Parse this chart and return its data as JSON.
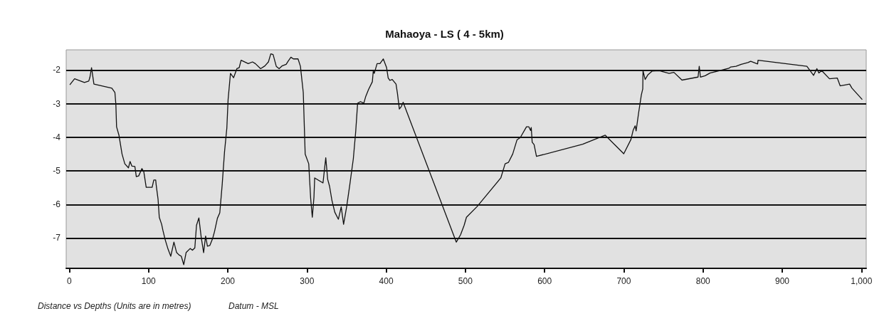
{
  "chart_data": {
    "type": "line",
    "title": "Mahaoya - LS ( 4 - 5km)",
    "annotations": [
      "Distance vs Depths (Units are in metres)",
      "Datum - MSL"
    ],
    "x": [
      0.6,
      6.6,
      19,
      24.5,
      26,
      28,
      31,
      53.6,
      57.5,
      58.7,
      59.6,
      62.6,
      66.5,
      70,
      74.6,
      76.6,
      79,
      82.7,
      84.5,
      87.5,
      91.6,
      94,
      97,
      104.5,
      106.6,
      109,
      109.6,
      112,
      113.5,
      116.5,
      118,
      121,
      124.6,
      128,
      132,
      135.4,
      138.4,
      141.3,
      144.4,
      147.4,
      152.5,
      155.4,
      158.4,
      160.5,
      163.5,
      166.5,
      169.5,
      172,
      174.3,
      177.3,
      180.9,
      183.3,
      186.9,
      189.9,
      192.9,
      195.9,
      198.8,
      200.4,
      203.4,
      207.3,
      211.5,
      214.4,
      216.8,
      225.8,
      231.2,
      234.8,
      241.4,
      246.8,
      251.3,
      254.3,
      257.2,
      261.2,
      264.8,
      268.4,
      273.7,
      276.1,
      279.7,
      282.8,
      288.7,
      291.7,
      295.3,
      297.7,
      302.2,
      304.6,
      306.7,
      308.8,
      309.7,
      320.2,
      323.7,
      326.1,
      328.5,
      331.5,
      335.1,
      339.6,
      343.2,
      346.2,
      350.1,
      354,
      358.5,
      361.5,
      363.9,
      367.5,
      371.7,
      374.1,
      377.7,
      382.5,
      383.7,
      384.9,
      388.5,
      392.1,
      396.3,
      400.5,
      402.5,
      404.6,
      407.6,
      412.4,
      414.2,
      416.6,
      419,
      421.4,
      488.5,
      493.9,
      498.4,
      501.3,
      514.8,
      544.7,
      550.1,
      554.3,
      559.7,
      565.1,
      569.3,
      577.1,
      580.1,
      582.2,
      583.1,
      584.3,
      586.7,
      589.7,
      648,
      676.5,
      699.9,
      708.9,
      711.9,
      714.3,
      715.5,
      718.5,
      722.1,
      723.9,
      724.2,
      726.9,
      730.5,
      735.9,
      744.9,
      757.2,
      763.2,
      773.4,
      793.7,
      795.2,
      796.7,
      802.7,
      808.7,
      832.6,
      835,
      841.6,
      848.2,
      856.6,
      860.2,
      868.9,
      869.4,
      931.1,
      939.5,
      943.7,
      946.2,
      949.8,
      959.6,
      969.5,
      973.1,
      980.5,
      985,
      988,
      1001
    ],
    "series": [
      {
        "color": "#111111",
        "values": [
          -2.44,
          -2.26,
          -2.37,
          -2.33,
          -2.21,
          -1.93,
          -2.42,
          -2.54,
          -2.67,
          -3.02,
          -3.69,
          -3.94,
          -4.5,
          -4.79,
          -4.91,
          -4.72,
          -4.86,
          -4.87,
          -5.17,
          -5.15,
          -4.93,
          -5.03,
          -5.49,
          -5.49,
          -5.27,
          -5.27,
          -5.42,
          -5.85,
          -6.38,
          -6.59,
          -6.76,
          -7.05,
          -7.33,
          -7.54,
          -7.12,
          -7.43,
          -7.5,
          -7.54,
          -7.79,
          -7.43,
          -7.31,
          -7.36,
          -7.29,
          -6.62,
          -6.4,
          -6.98,
          -7.43,
          -6.94,
          -7.24,
          -7.22,
          -7.01,
          -6.8,
          -6.41,
          -6.25,
          -5.42,
          -4.43,
          -3.73,
          -2.88,
          -2.1,
          -2.23,
          -1.96,
          -1.93,
          -1.71,
          -1.81,
          -1.76,
          -1.81,
          -1.96,
          -1.88,
          -1.76,
          -1.52,
          -1.54,
          -1.89,
          -1.96,
          -1.88,
          -1.83,
          -1.74,
          -1.62,
          -1.67,
          -1.67,
          -1.89,
          -2.67,
          -4.5,
          -4.79,
          -5.81,
          -6.38,
          -5.78,
          -5.21,
          -5.36,
          -4.61,
          -5.25,
          -5.46,
          -5.88,
          -6.23,
          -6.44,
          -6.07,
          -6.59,
          -6.06,
          -5.42,
          -4.64,
          -3.83,
          -2.99,
          -2.94,
          -2.99,
          -2.79,
          -2.58,
          -2.35,
          -2.02,
          -2.1,
          -1.81,
          -1.81,
          -1.67,
          -1.93,
          -2.24,
          -2.31,
          -2.28,
          -2.42,
          -2.7,
          -3.16,
          -3.09,
          -2.96,
          -7.12,
          -6.9,
          -6.62,
          -6.38,
          -6.06,
          -5.21,
          -4.79,
          -4.75,
          -4.5,
          -4.08,
          -4.01,
          -3.69,
          -3.69,
          -3.8,
          -3.71,
          -4.15,
          -4.22,
          -4.57,
          -4.21,
          -3.94,
          -4.49,
          -4.07,
          -3.78,
          -3.66,
          -3.81,
          -3.3,
          -2.74,
          -2.56,
          -2.02,
          -2.28,
          -2.14,
          -2.03,
          -2.02,
          -2.1,
          -2.07,
          -2.3,
          -2.21,
          -1.89,
          -2.21,
          -2.17,
          -2.09,
          -1.95,
          -1.91,
          -1.89,
          -1.83,
          -1.78,
          -1.74,
          -1.82,
          -1.71,
          -1.89,
          -2.16,
          -1.96,
          -2.09,
          -2.02,
          -2.26,
          -2.24,
          -2.47,
          -2.44,
          -2.42,
          -2.54,
          -2.88
        ]
      }
    ],
    "xlim": [
      -4,
      1006
    ],
    "xticks": [
      0,
      100,
      200,
      300,
      400,
      500,
      600,
      700,
      800,
      900,
      {
        "value": 1000,
        "label": "1,000"
      }
    ],
    "ylim": [
      -7.9,
      -1.4
    ],
    "yticks": [
      -2,
      -3,
      -4,
      -5,
      -6,
      -7
    ],
    "grid": "y",
    "marker": "none",
    "line_style": "solid"
  }
}
